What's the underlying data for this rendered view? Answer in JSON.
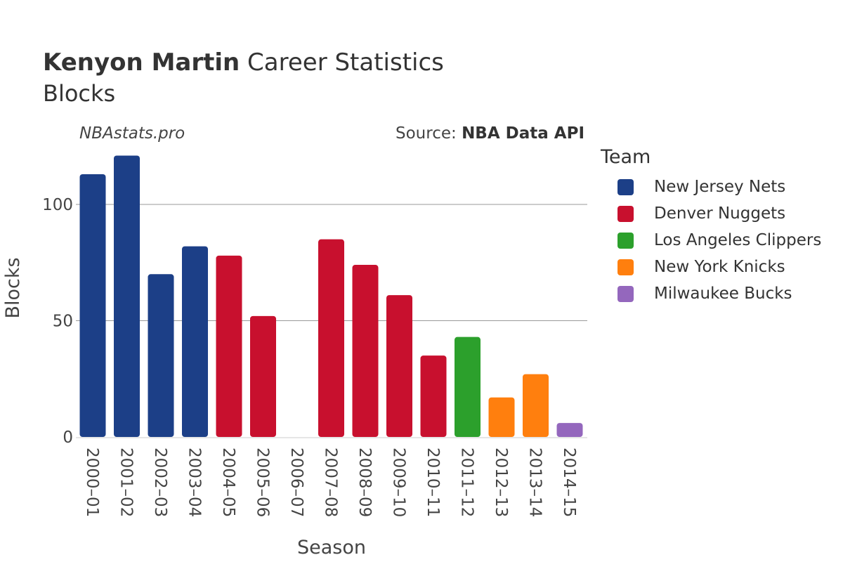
{
  "header": {
    "title_bold": "Kenyon Martin",
    "title_rest": "Career Statistics",
    "subtitle": "Blocks",
    "watermark": "NBAstats.pro",
    "source_prefix": "Source: ",
    "source_bold": "NBA Data API"
  },
  "chart_data": {
    "type": "bar",
    "xlabel": "Season",
    "ylabel": "Blocks",
    "ylim": [
      0,
      120
    ],
    "yticks": [
      0,
      50,
      100
    ],
    "grid": true,
    "legend_title": "Team",
    "legend_position": "right",
    "categories": [
      "2000–01",
      "2001–02",
      "2002–03",
      "2003–04",
      "2004–05",
      "2005–06",
      "2006–07",
      "2007–08",
      "2008–09",
      "2009–10",
      "2010–11",
      "2011–12",
      "2012–13",
      "2013–14",
      "2014–15"
    ],
    "values": [
      113,
      121,
      70,
      82,
      78,
      52,
      0,
      85,
      74,
      61,
      35,
      43,
      17,
      27,
      6
    ],
    "teams": [
      "New Jersey Nets",
      "New Jersey Nets",
      "New Jersey Nets",
      "New Jersey Nets",
      "Denver Nuggets",
      "Denver Nuggets",
      "Denver Nuggets",
      "Denver Nuggets",
      "Denver Nuggets",
      "Denver Nuggets",
      "Denver Nuggets",
      "Los Angeles Clippers",
      "New York Knicks",
      "New York Knicks",
      "Milwaukee Bucks"
    ],
    "legend": [
      {
        "name": "New Jersey Nets",
        "color": "#1c3f87"
      },
      {
        "name": "Denver Nuggets",
        "color": "#c8102e"
      },
      {
        "name": "Los Angeles Clippers",
        "color": "#2ca02c"
      },
      {
        "name": "New York Knicks",
        "color": "#ff7f0e"
      },
      {
        "name": "Milwaukee Bucks",
        "color": "#9467bd"
      }
    ]
  }
}
